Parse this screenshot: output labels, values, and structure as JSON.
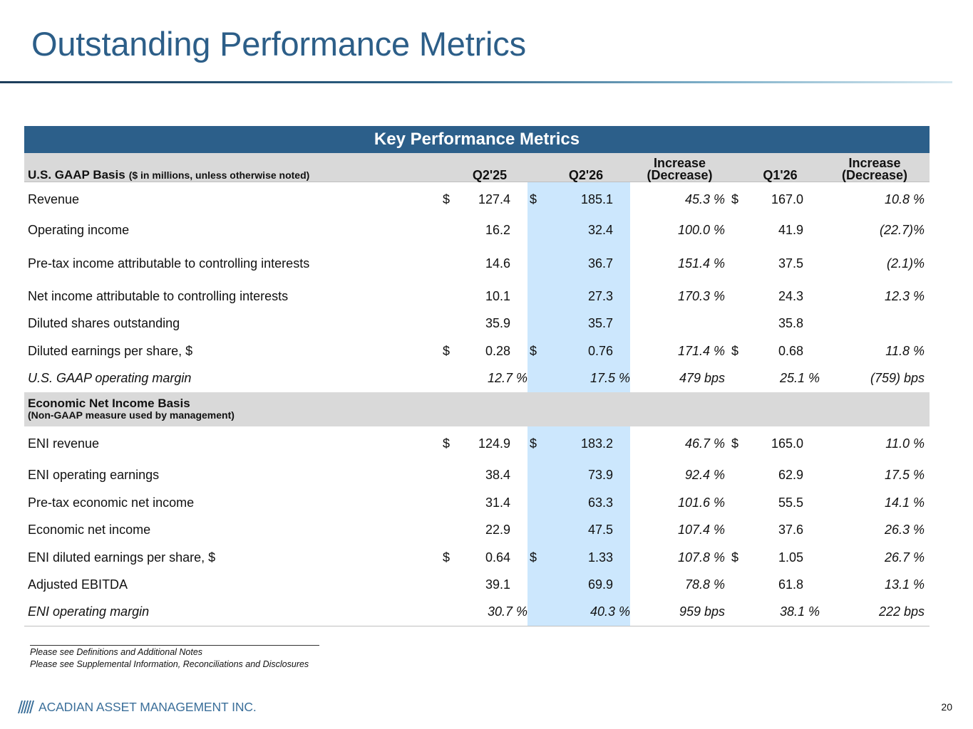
{
  "page": {
    "title": "Outstanding Performance Metrics",
    "number": "20"
  },
  "table": {
    "title": "Key Performance Metrics",
    "gaap_header": {
      "basis": "U.S. GAAP Basis",
      "basis_note": "($ in millions, unless otherwise noted)",
      "col_q2_25": "Q2'25",
      "col_q2_26": "Q2'26",
      "col_inc_1_line1": "Increase",
      "col_inc_1_line2": "(Decrease)",
      "col_q1_26": "Q1'26",
      "col_inc_2_line1": "Increase",
      "col_inc_2_line2": "(Decrease)"
    },
    "gaap_rows": [
      {
        "label": "Revenue",
        "d1": "$",
        "q2_25": "127.4",
        "d2": "$",
        "q2_26": "185.1",
        "inc1": "45.3 %",
        "d3": "$",
        "q1_26": "167.0",
        "inc2": "10.8 %"
      },
      {
        "label": "Operating income",
        "d1": "",
        "q2_25": "16.2",
        "d2": "",
        "q2_26": "32.4",
        "inc1": "100.0 %",
        "d3": "",
        "q1_26": "41.9",
        "inc2": "(22.7)%"
      },
      {
        "label": "Pre-tax income attributable to controlling interests",
        "d1": "",
        "q2_25": "14.6",
        "d2": "",
        "q2_26": "36.7",
        "inc1": "151.4 %",
        "d3": "",
        "q1_26": "37.5",
        "inc2": "(2.1)%"
      },
      {
        "label": "Net income attributable to controlling interests",
        "d1": "",
        "q2_25": "10.1",
        "d2": "",
        "q2_26": "27.3",
        "inc1": "170.3 %",
        "d3": "",
        "q1_26": "24.3",
        "inc2": "12.3 %"
      },
      {
        "label": "Diluted shares outstanding",
        "d1": "",
        "q2_25": "35.9",
        "d2": "",
        "q2_26": "35.7",
        "inc1": "",
        "d3": "",
        "q1_26": "35.8",
        "inc2": ""
      },
      {
        "label": "Diluted earnings per share, $",
        "d1": "$",
        "q2_25": "0.28",
        "d2": "$",
        "q2_26": "0.76",
        "inc1": "171.4 %",
        "d3": "$",
        "q1_26": "0.68",
        "inc2": "11.8 %"
      },
      {
        "label": "U.S. GAAP operating margin",
        "d1": "",
        "q2_25": "12.7 %",
        "d2": "",
        "q2_26": "17.5 %",
        "inc1": "479 bps",
        "d3": "",
        "q1_26": "25.1 %",
        "inc2": "(759) bps"
      }
    ],
    "eni_header": {
      "title": "Economic Net Income Basis",
      "subtitle": "(Non-GAAP measure used by management)"
    },
    "eni_rows": [
      {
        "label": "ENI revenue",
        "d1": "$",
        "q2_25": "124.9",
        "d2": "$",
        "q2_26": "183.2",
        "inc1": "46.7 %",
        "d3": "$",
        "q1_26": "165.0",
        "inc2": "11.0 %"
      },
      {
        "label": "ENI operating earnings",
        "d1": "",
        "q2_25": "38.4",
        "d2": "",
        "q2_26": "73.9",
        "inc1": "92.4 %",
        "d3": "",
        "q1_26": "62.9",
        "inc2": "17.5 %"
      },
      {
        "label": "Pre-tax economic net income",
        "d1": "",
        "q2_25": "31.4",
        "d2": "",
        "q2_26": "63.3",
        "inc1": "101.6 %",
        "d3": "",
        "q1_26": "55.5",
        "inc2": "14.1 %"
      },
      {
        "label": "Economic net income",
        "d1": "",
        "q2_25": "22.9",
        "d2": "",
        "q2_26": "47.5",
        "inc1": "107.4 %",
        "d3": "",
        "q1_26": "37.6",
        "inc2": "26.3 %"
      },
      {
        "label": "ENI diluted earnings per share, $",
        "d1": "$",
        "q2_25": "0.64",
        "d2": "$",
        "q2_26": "1.33",
        "inc1": "107.8 %",
        "d3": "$",
        "q1_26": "1.05",
        "inc2": "26.7 %"
      },
      {
        "label": "Adjusted EBITDA",
        "d1": "",
        "q2_25": "39.1",
        "d2": "",
        "q2_26": "69.9",
        "inc1": "78.8 %",
        "d3": "",
        "q1_26": "61.8",
        "inc2": "13.1 %"
      },
      {
        "label": "ENI operating margin",
        "d1": "",
        "q2_25": "30.7 %",
        "d2": "",
        "q2_26": "40.3 %",
        "inc1": "959 bps",
        "d3": "",
        "q1_26": "38.1 %",
        "inc2": "222 bps"
      }
    ]
  },
  "footnotes": [
    "Please see Definitions and Additional Notes",
    "Please see Supplemental Information, Reconciliations and Disclosures"
  ],
  "logo": {
    "text": "ACADIAN ASSET MANAGEMENT INC.",
    "color": "#3b6f9a"
  },
  "colors": {
    "title": "#2c5e88",
    "table_header": "#2c5f8a",
    "section_band": "#d9d9d9",
    "highlight_column": "#cce7fd"
  }
}
